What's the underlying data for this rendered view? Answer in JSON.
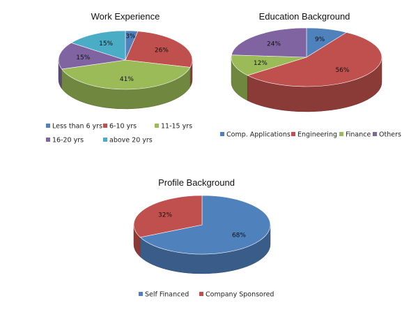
{
  "chart_data": [
    {
      "type": "pie",
      "title": "Work Experience",
      "labels": [
        "Less than 6 yrs",
        "6-10 yrs",
        "11-15 yrs",
        "16-20 yrs",
        "above 20 yrs"
      ],
      "values": [
        3,
        26,
        41,
        15,
        15
      ],
      "value_labels": [
        "3%",
        "26%",
        "41%",
        "15%",
        "15%"
      ],
      "colors": [
        "#4F81BD",
        "#C0504D",
        "#9BBB59",
        "#8064A2",
        "#4BACC6"
      ],
      "style": "3d",
      "legend": "bottom"
    },
    {
      "type": "pie",
      "title": "Education Background",
      "labels": [
        "Comp. Applications",
        "Engineering",
        "Finance",
        "Others"
      ],
      "values": [
        9,
        56,
        12,
        24
      ],
      "value_labels": [
        "9%",
        "56%",
        "12%",
        "24%"
      ],
      "colors": [
        "#4F81BD",
        "#C0504D",
        "#9BBB59",
        "#8064A2"
      ],
      "style": "3d",
      "legend": "bottom"
    },
    {
      "type": "pie",
      "title": "Profile Background",
      "labels": [
        "Self Financed",
        "Company Sponsored"
      ],
      "values": [
        68,
        32
      ],
      "value_labels": [
        "68%",
        "32%"
      ],
      "colors": [
        "#4F81BD",
        "#C0504D"
      ],
      "style": "3d",
      "legend": "bottom"
    }
  ]
}
